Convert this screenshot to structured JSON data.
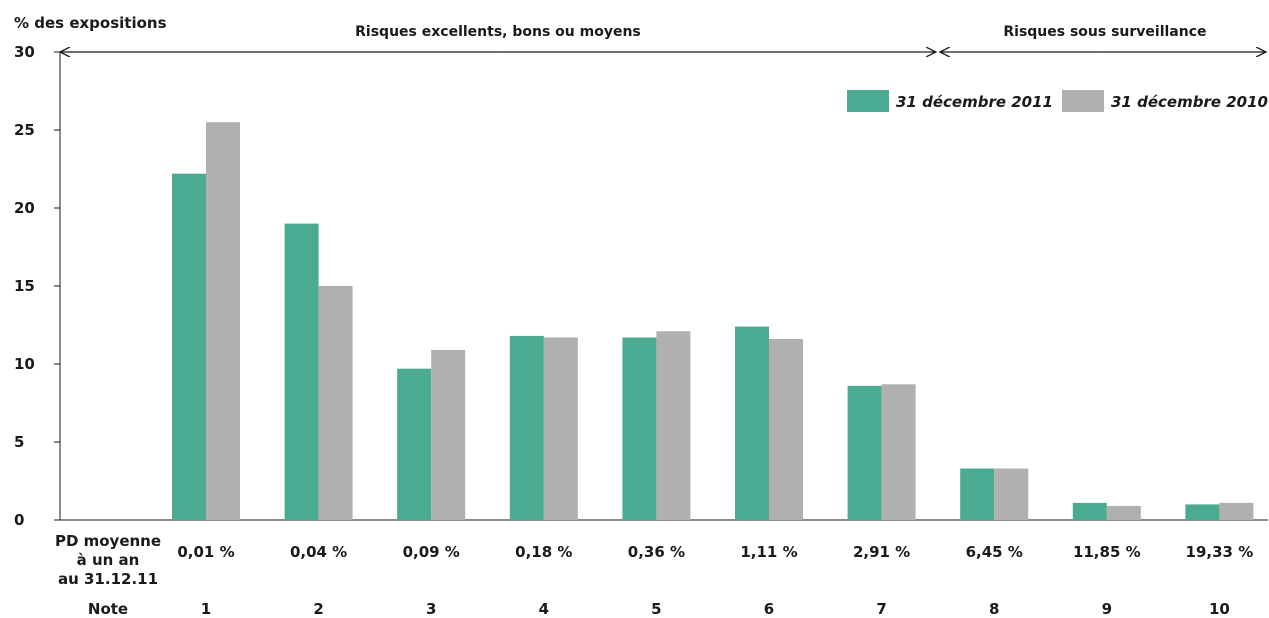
{
  "chart_data": {
    "type": "bar",
    "ylabel": "% des expositions",
    "ylim": [
      0,
      30
    ],
    "yticks": [
      0,
      5,
      10,
      15,
      20,
      25,
      30
    ],
    "grid": false,
    "legend_position": "top-right",
    "categories": [
      "1",
      "2",
      "3",
      "4",
      "5",
      "6",
      "7",
      "8",
      "9",
      "10"
    ],
    "pd_row_label": [
      "PD moyenne",
      "à un an",
      "au 31.12.11"
    ],
    "pd_values": [
      "0,01 %",
      "0,04 %",
      "0,09 %",
      "0,18 %",
      "0,36 %",
      "1,11 %",
      "2,91 %",
      "6,45 %",
      "11,85 %",
      "19,33 %"
    ],
    "note_row_label": "Note",
    "groups": [
      {
        "label": "Risques excellents, bons ou moyens",
        "from": "1",
        "to": "7"
      },
      {
        "label": "Risques sous surveillance",
        "from": "8",
        "to": "10"
      }
    ],
    "series": [
      {
        "name": "31 décembre 2011",
        "color": "#4aab92",
        "values": [
          22.2,
          19.0,
          9.7,
          11.8,
          11.7,
          12.4,
          8.6,
          3.3,
          1.1,
          1.0
        ]
      },
      {
        "name": "31 décembre 2010",
        "color": "#b0b0b0",
        "values": [
          25.5,
          15.0,
          10.9,
          11.7,
          12.1,
          11.6,
          8.7,
          3.3,
          0.9,
          1.1
        ]
      }
    ]
  }
}
